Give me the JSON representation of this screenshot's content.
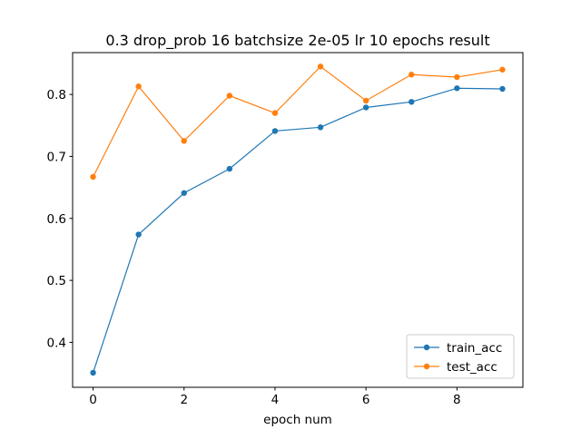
{
  "chart_data": {
    "type": "line",
    "title": "0.3 drop_prob 16 batchsize  2e-05 lr 10 epochs result",
    "xlabel": "epoch num",
    "ylabel": "",
    "x": [
      0,
      1,
      2,
      3,
      4,
      5,
      6,
      7,
      8,
      9
    ],
    "xlim": [
      -0.45,
      9.45
    ],
    "ylim": [
      0.3275,
      0.8675
    ],
    "xticks": [
      0,
      2,
      4,
      6,
      8
    ],
    "yticks": [
      0.4,
      0.5,
      0.6,
      0.7,
      0.8
    ],
    "grid": false,
    "legend_position": "lower-right",
    "series": [
      {
        "name": "train_acc",
        "color": "#1f77b4",
        "values": [
          0.351,
          0.574,
          0.641,
          0.68,
          0.741,
          0.747,
          0.779,
          0.788,
          0.81,
          0.809
        ]
      },
      {
        "name": "test_acc",
        "color": "#ff7f0e",
        "values": [
          0.667,
          0.813,
          0.725,
          0.798,
          0.77,
          0.845,
          0.79,
          0.832,
          0.828,
          0.84
        ]
      }
    ]
  }
}
